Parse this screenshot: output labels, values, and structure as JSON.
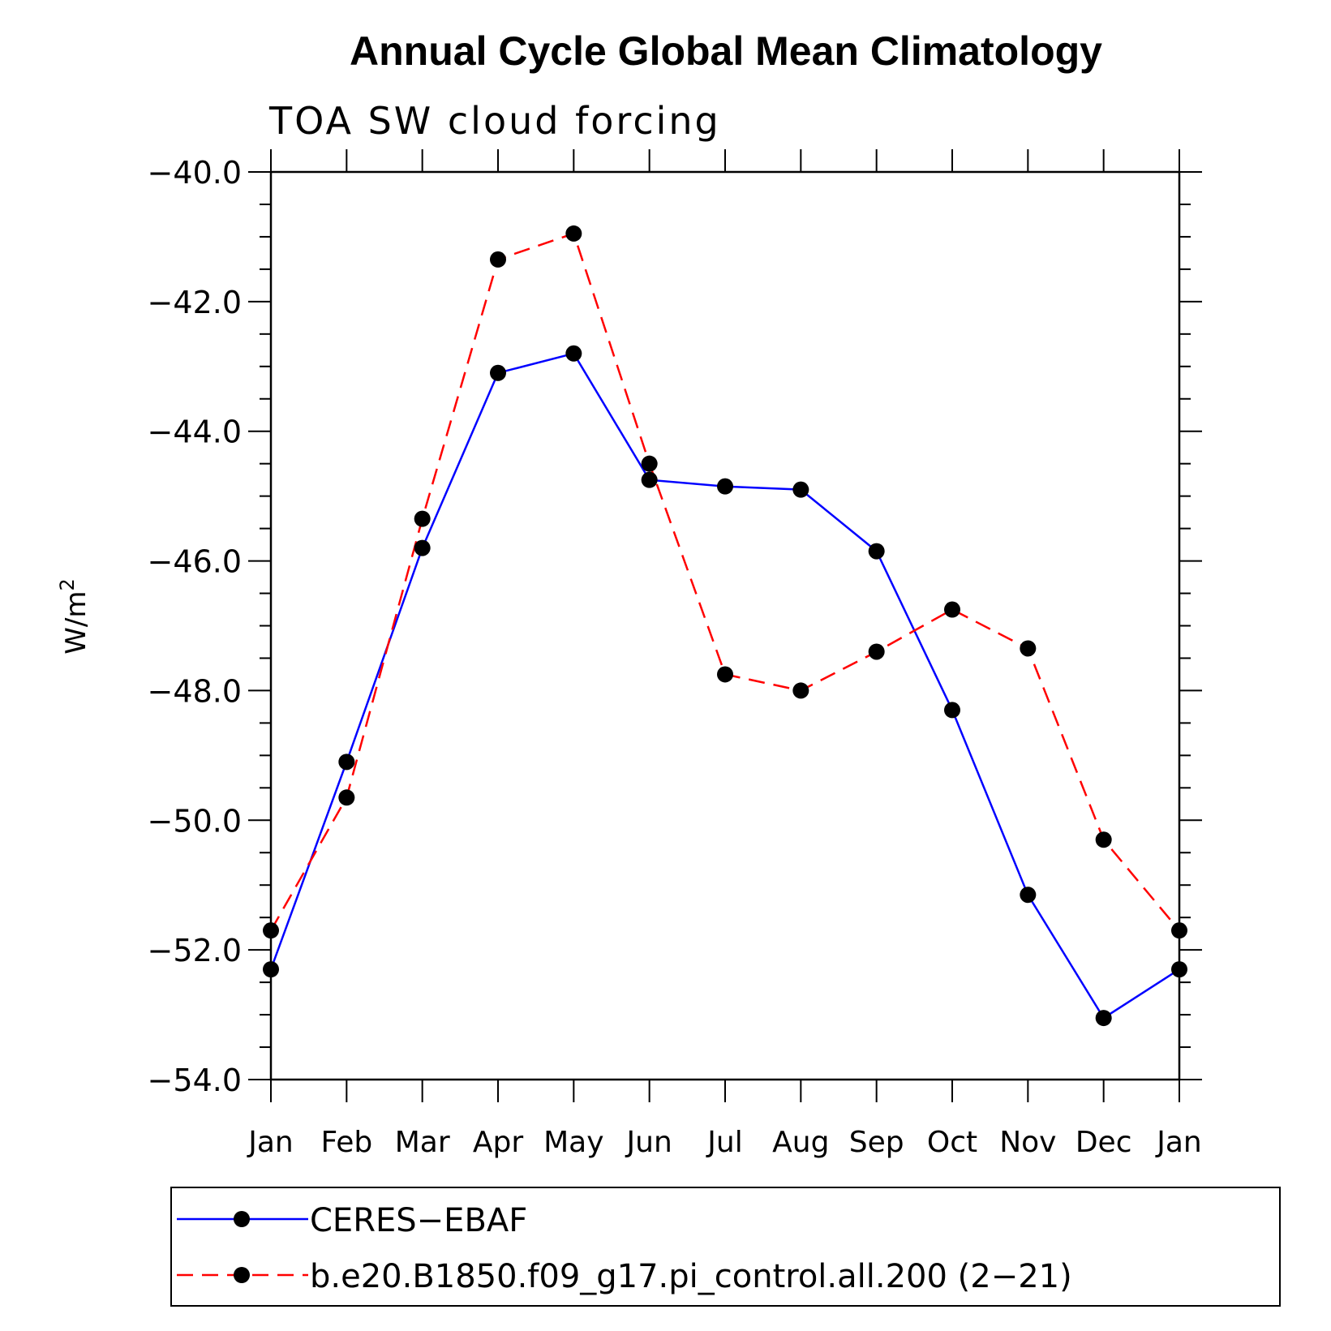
{
  "chart_data": {
    "type": "line",
    "title": "Annual Cycle Global Mean Climatology",
    "subtitle": "TOA SW cloud forcing",
    "ylabel_base": "W/m",
    "ylabel_sup": "2",
    "xlabel": "",
    "categories": [
      "Jan",
      "Feb",
      "Mar",
      "Apr",
      "May",
      "Jun",
      "Jul",
      "Aug",
      "Sep",
      "Oct",
      "Nov",
      "Dec",
      "Jan"
    ],
    "ylim": [
      -54.0,
      -40.0
    ],
    "yticks": [
      "-54.0",
      "-52.0",
      "-50.0",
      "-48.0",
      "-46.0",
      "-44.0",
      "-42.0",
      "-40.0"
    ],
    "ytick_values": [
      -54,
      -52,
      -50,
      -48,
      -46,
      -44,
      -42,
      -40
    ],
    "series": [
      {
        "name": "CERES−EBAF",
        "color": "#0000ff",
        "dash": "solid",
        "marker": "circle",
        "values": [
          -52.3,
          -49.1,
          -45.8,
          -43.1,
          -42.8,
          -44.75,
          -44.85,
          -44.9,
          -45.85,
          -48.3,
          -51.15,
          -53.05,
          -52.3
        ]
      },
      {
        "name": "b.e20.B1850.f09_g17.pi_control.all.200 (2−21)",
        "color": "#ff0000",
        "dash": "dashed",
        "marker": "circle",
        "values": [
          -51.7,
          -49.65,
          -45.35,
          -41.35,
          -40.95,
          -44.5,
          -47.75,
          -48.0,
          -47.4,
          -46.75,
          -47.35,
          -50.3,
          -51.7
        ]
      }
    ],
    "legend_position": "bottom",
    "grid": false
  }
}
